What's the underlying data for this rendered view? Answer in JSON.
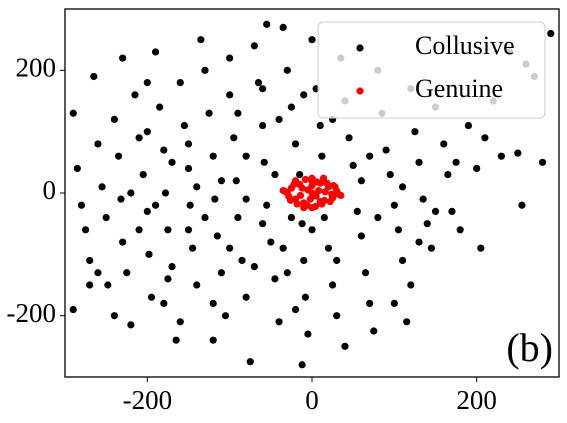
{
  "chart_data": {
    "type": "scatter",
    "annotation": "(b)",
    "xlim": [
      -300,
      300
    ],
    "ylim": [
      -300,
      300
    ],
    "xticks": [
      -200,
      0,
      200
    ],
    "yticks": [
      -200,
      0,
      200
    ],
    "legend": "upper right",
    "series": [
      {
        "name": "Collusive",
        "color": "#000000",
        "x": [
          -290,
          -285,
          -280,
          -275,
          -270,
          -290,
          -265,
          -260,
          -255,
          -250,
          -248,
          -240,
          -235,
          -232,
          -230,
          -225,
          -220,
          -215,
          -210,
          -205,
          -200,
          -198,
          -195,
          -190,
          -185,
          -180,
          -178,
          -175,
          -170,
          -165,
          -160,
          -155,
          -150,
          -148,
          -145,
          -140,
          -135,
          -130,
          -125,
          -120,
          -118,
          -115,
          -110,
          -105,
          -100,
          -95,
          -92,
          -90,
          -85,
          -80,
          -75,
          -70,
          -65,
          -60,
          -58,
          -55,
          -50,
          -45,
          -40,
          -55,
          -35,
          -30,
          -25,
          -20,
          -15,
          -12,
          -10,
          -8,
          -5,
          -12,
          0,
          5,
          10,
          12,
          15,
          20,
          25,
          30,
          35,
          40,
          45,
          50,
          55,
          60,
          65,
          70,
          75,
          80,
          85,
          90,
          95,
          100,
          105,
          110,
          115,
          120,
          125,
          130,
          135,
          140,
          145,
          150,
          160,
          165,
          170,
          180,
          190,
          200,
          205,
          210,
          220,
          230,
          250,
          255,
          270,
          280,
          290,
          260,
          240,
          -200,
          -260,
          -240,
          -170,
          -130,
          -90,
          -60,
          -30,
          30,
          60,
          80,
          120,
          -210,
          -150,
          -100,
          -140,
          -180,
          -120,
          -80,
          -40,
          0,
          -20,
          40,
          -230,
          -160,
          -100,
          -110,
          -200,
          -270,
          -190,
          -60,
          -70,
          100,
          150,
          175,
          -45,
          -25,
          -10,
          -80,
          -120,
          -220,
          -175,
          -150,
          -35,
          25,
          70,
          110,
          130
        ],
        "values": [
          130,
          40,
          -20,
          -60,
          -110,
          -190,
          190,
          80,
          10,
          -40,
          -150,
          120,
          60,
          -10,
          -80,
          -130,
          -215,
          160,
          90,
          30,
          -30,
          -100,
          -170,
          230,
          140,
          70,
          0,
          -60,
          -120,
          -240,
          180,
          110,
          40,
          -20,
          -90,
          -150,
          250,
          200,
          130,
          60,
          -10,
          -70,
          -130,
          -200,
          160,
          90,
          20,
          -40,
          -110,
          -170,
          -275,
          240,
          180,
          110,
          50,
          -20,
          -80,
          -140,
          -210,
          275,
          270,
          200,
          140,
          80,
          30,
          -50,
          -110,
          -170,
          -230,
          -280,
          250,
          170,
          110,
          60,
          -40,
          -90,
          -150,
          -200,
          220,
          150,
          90,
          45,
          -30,
          -70,
          -130,
          -180,
          -225,
          200,
          130,
          70,
          30,
          -20,
          -60,
          -110,
          -210,
          170,
          100,
          50,
          -10,
          -50,
          -90,
          140,
          80,
          30,
          -30,
          -60,
          110,
          40,
          -90,
          90,
          150,
          60,
          65,
          -20,
          190,
          50,
          260,
          210,
          230,
          180,
          -130,
          -200,
          50,
          -40,
          130,
          -50,
          -130,
          -110,
          20,
          -40,
          -150,
          -60,
          -60,
          -90,
          10,
          -180,
          -240,
          60,
          120,
          -60,
          -190,
          -250,
          220,
          -210,
          220,
          20,
          100,
          -150,
          -20,
          170,
          -120,
          -180,
          -30,
          50,
          30,
          -40,
          160,
          -10,
          -180,
          0,
          -140,
          80,
          -90,
          120,
          60,
          10,
          -80
        ]
      },
      {
        "name": "Genuine",
        "color": "#ff0000",
        "x": [
          -30,
          -25,
          -20,
          -15,
          -10,
          -5,
          0,
          5,
          10,
          15,
          20,
          25,
          30,
          -28,
          -22,
          -18,
          -12,
          -6,
          0,
          6,
          12,
          18,
          22,
          28,
          -32,
          32,
          -26,
          -14,
          -2,
          8,
          16,
          26,
          -20,
          -8,
          4,
          14,
          24,
          -10,
          0,
          10,
          35,
          -35,
          0,
          0
        ],
        "values": [
          0,
          8,
          -10,
          14,
          -16,
          5,
          0,
          -5,
          16,
          -12,
          10,
          -8,
          3,
          -6,
          14,
          -18,
          8,
          -20,
          20,
          18,
          -18,
          16,
          -14,
          10,
          2,
          -2,
          -12,
          -4,
          -10,
          4,
          2,
          12,
          20,
          22,
          -22,
          24,
          -2,
          -24,
          12,
          -14,
          -4,
          4,
          24,
          -24
        ]
      }
    ]
  }
}
